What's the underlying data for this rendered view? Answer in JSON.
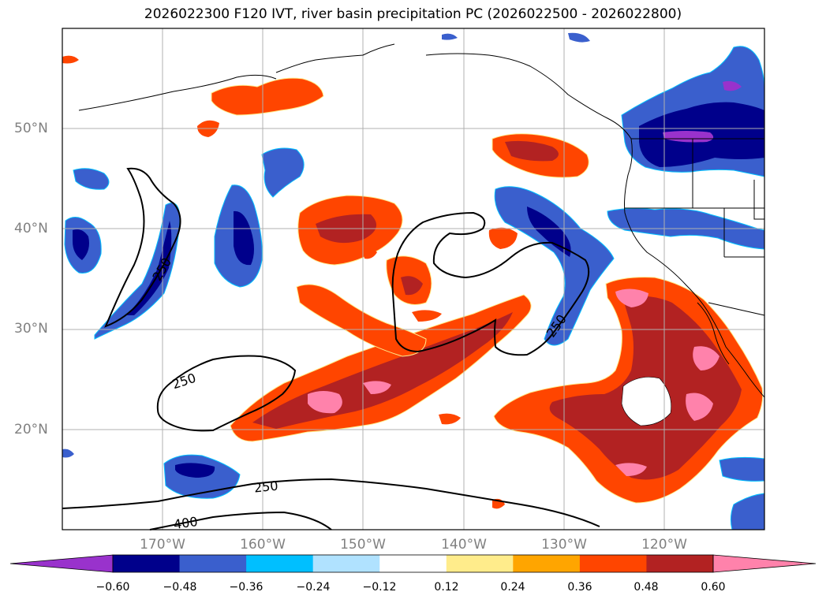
{
  "title": "2026022300 F120 IVT, river basin precipitation PC (2026022500 - 2026022800)",
  "lat_labels": [
    "50°N",
    "40°N",
    "30°N",
    "20°N"
  ],
  "lon_labels": [
    "170°W",
    "160°W",
    "150°W",
    "140°W",
    "130°W",
    "120°W"
  ],
  "contour_labels": [
    "250",
    "250",
    "250",
    "250",
    "400"
  ],
  "colorbar": {
    "ticks": [
      "−0.60",
      "−0.48",
      "−0.36",
      "−0.24",
      "−0.12",
      "0.12",
      "0.24",
      "0.36",
      "0.48",
      "0.60"
    ],
    "colors": [
      "#9932cc",
      "#00008b",
      "#3a5fcd",
      "#00bfff",
      "#b0e2ff",
      "#ffffff",
      "#ffec8b",
      "#ffa500",
      "#ff4500",
      "#b22222",
      "#ff82ab"
    ]
  },
  "map_extent": {
    "lon_min": -180,
    "lon_max": -110,
    "lat_min": 10,
    "lat_max": 60
  }
}
